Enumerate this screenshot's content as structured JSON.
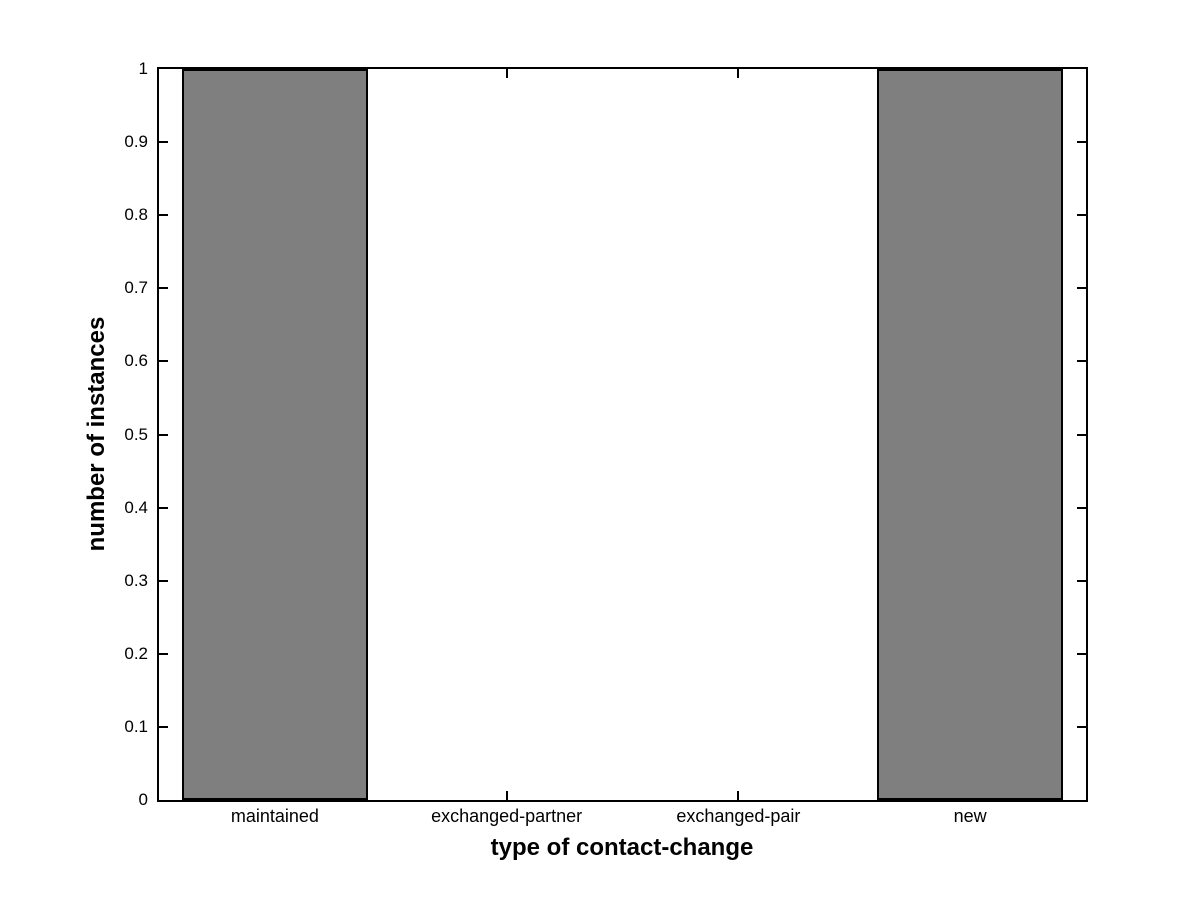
{
  "chart_data": {
    "type": "bar",
    "categories": [
      "maintained",
      "exchanged-partner",
      "exchanged-pair",
      "new"
    ],
    "values": [
      1,
      0,
      0,
      1
    ],
    "xlabel": "type of contact-change",
    "ylabel": "number of instances",
    "ylim": [
      0,
      1
    ],
    "ytick_step": 0.1,
    "ytick_labels": [
      "0",
      "0.1",
      "0.2",
      "0.3",
      "0.4",
      "0.5",
      "0.6",
      "0.7",
      "0.8",
      "0.9",
      "1"
    ],
    "bar_width_fraction": 0.8,
    "bar_color": "#7f7f7f",
    "bar_edge_color": "#000000",
    "axis_color": "#000000",
    "background_color": "#ffffff",
    "grid": false,
    "legend": null
  }
}
